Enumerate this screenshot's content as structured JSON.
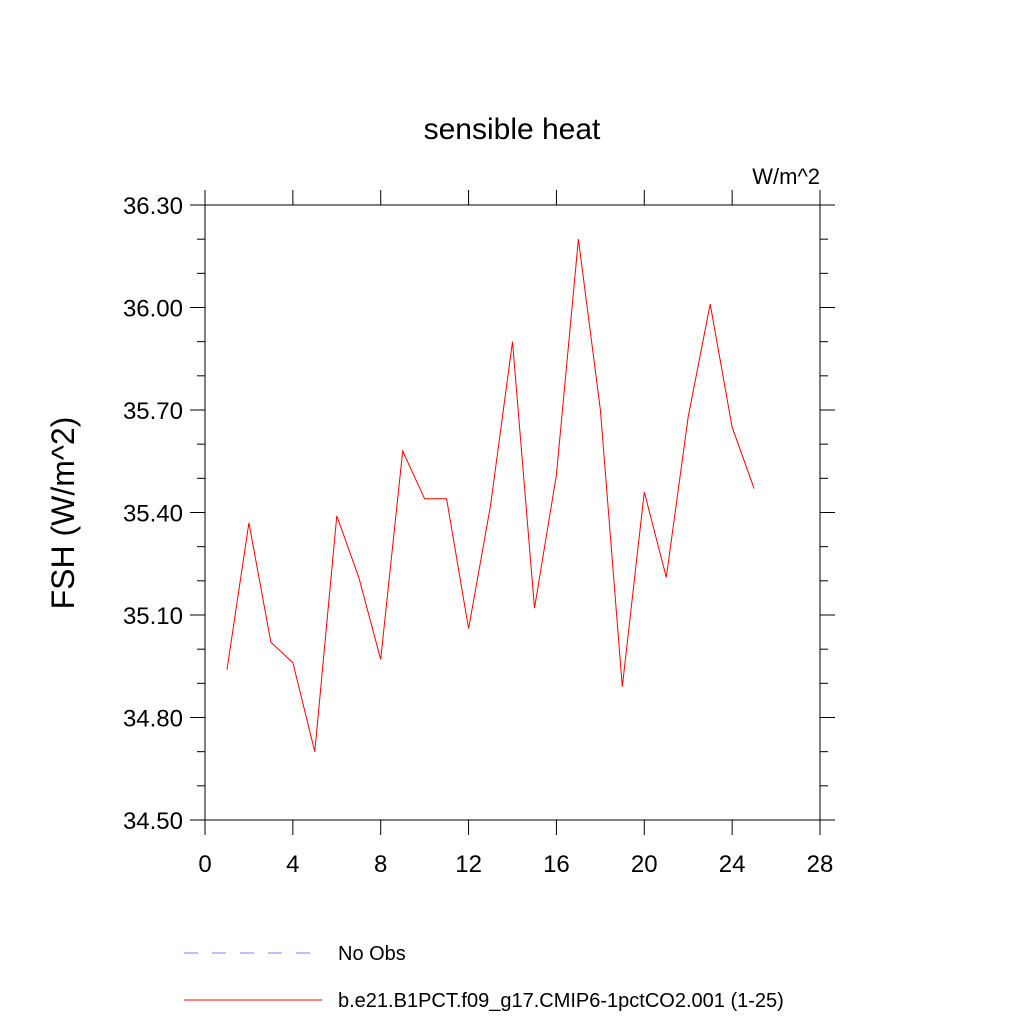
{
  "chart_data": {
    "type": "line",
    "title": "sensible heat",
    "units_label": "W/m^2",
    "ylabel": "FSH  (W/m^2)",
    "xlabel": "",
    "xlim": [
      0,
      28
    ],
    "ylim": [
      34.5,
      36.3
    ],
    "xticks": [
      0,
      4,
      8,
      12,
      16,
      20,
      24,
      28
    ],
    "yticks": [
      34.5,
      34.8,
      35.1,
      35.4,
      35.7,
      36.0,
      36.3
    ],
    "ytick_labels": [
      "34.50",
      "34.80",
      "35.10",
      "35.40",
      "35.70",
      "36.00",
      "36.30"
    ],
    "xtick_labels": [
      "0",
      "4",
      "8",
      "12",
      "16",
      "20",
      "24",
      "28"
    ],
    "grid": false,
    "legend_placement": "bottom",
    "series": [
      {
        "name": "b.e21.B1PCT.f09_g17.CMIP6-1pctCO2.001 (1-25)",
        "color": "#ff0000",
        "style": "solid",
        "x": [
          1,
          2,
          3,
          4,
          5,
          6,
          7,
          8,
          9,
          10,
          11,
          12,
          13,
          14,
          15,
          16,
          17,
          18,
          19,
          20,
          21,
          22,
          23,
          24,
          25
        ],
        "y": [
          34.94,
          35.37,
          35.02,
          34.96,
          34.7,
          35.39,
          35.21,
          34.97,
          35.58,
          35.44,
          35.44,
          35.06,
          35.42,
          35.9,
          35.12,
          35.51,
          36.2,
          35.7,
          34.89,
          35.46,
          35.21,
          35.68,
          36.01,
          35.65,
          35.47
        ]
      }
    ],
    "legend": [
      {
        "label": "No Obs",
        "color": "#8080ff",
        "style": "dashed"
      },
      {
        "label": "b.e21.B1PCT.f09_g17.CMIP6-1pctCO2.001 (1-25)",
        "color": "#ff0000",
        "style": "solid"
      }
    ]
  }
}
